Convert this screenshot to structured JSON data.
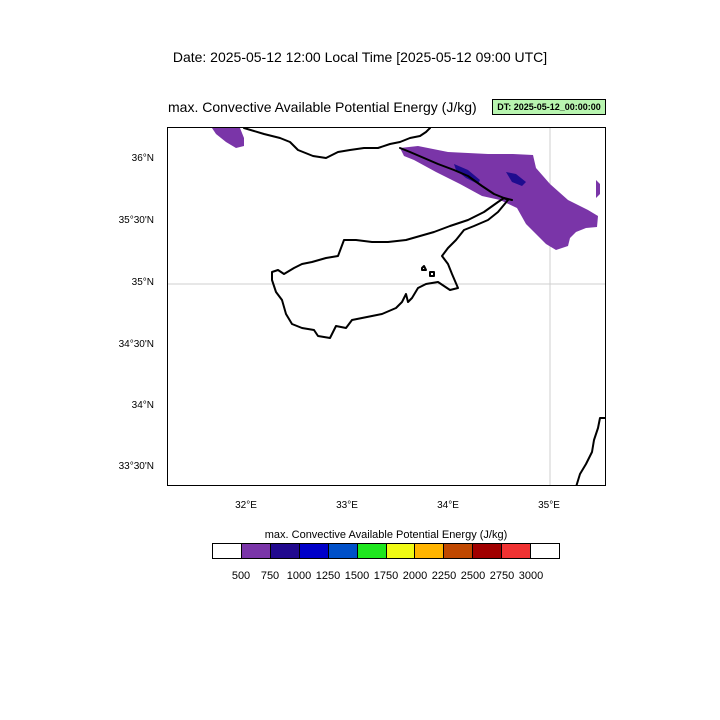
{
  "header": {
    "date_line": "Date: 2025-05-12  12:00 Local Time [2025-05-12  09:00 UTC]"
  },
  "map": {
    "title": "max. Convective Available Potential Energy   (J/kg)",
    "dt_badge": "DT: 2025-05-12_00:00:00",
    "lat_labels": [
      "36°N",
      "35°30'N",
      "35°N",
      "34°30'N",
      "34°N",
      "33°30'N"
    ],
    "lon_labels": [
      "32°E",
      "33°E",
      "34°E",
      "35°E"
    ],
    "colors": {
      "cape_500_750": "#7a35a8",
      "cape_750_1000": "#1f0c8f",
      "coastline": "#000000",
      "badge_bg": "#b8f5b0"
    }
  },
  "legend": {
    "title": "max. Convective Available Potential Energy  (J/kg)",
    "ticks": [
      "500",
      "750",
      "1000",
      "1250",
      "1500",
      "1750",
      "2000",
      "2250",
      "2500",
      "2750",
      "3000"
    ],
    "colors": [
      "#ffffff",
      "#7a35a8",
      "#21098e",
      "#0000c8",
      "#0050c8",
      "#1ee61e",
      "#f0fa14",
      "#ffb400",
      "#c04800",
      "#a00000",
      "#f03232",
      "#ffffff"
    ]
  }
}
